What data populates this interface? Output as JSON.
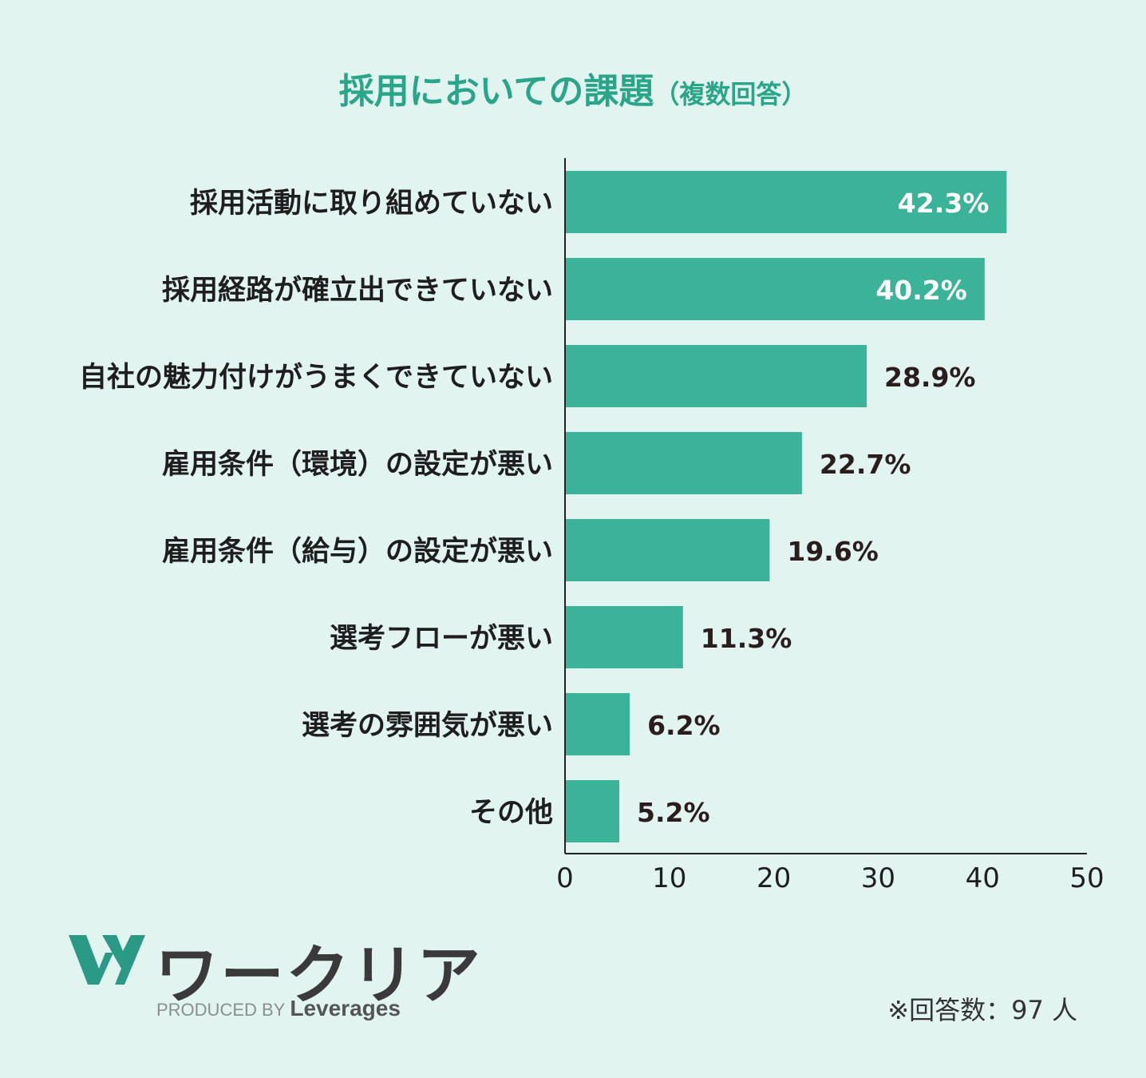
{
  "title": {
    "main": "採用においての課題",
    "sub": "（複数回答）"
  },
  "colors": {
    "bar": "#3ab398",
    "title": "#2aa58a",
    "label_inside": "#ffffff",
    "label_outside": "#2b1d1d",
    "background": "#e2f4ef"
  },
  "chart_data": {
    "type": "bar",
    "orientation": "horizontal",
    "categories": [
      "採用活動に取り組めていない",
      "採用経路が確立出できていない",
      "自社の魅力付けがうまくできていない",
      "雇用条件（環境）の設定が悪い",
      "雇用条件（給与）の設定が悪い",
      "選考フローが悪い",
      "選考の雰囲気が悪い",
      "その他"
    ],
    "values": [
      42.3,
      40.2,
      28.9,
      22.7,
      19.6,
      11.3,
      6.2,
      5.2
    ],
    "value_labels": [
      "42.3%",
      "40.2%",
      "28.9%",
      "22.7%",
      "19.6%",
      "11.3%",
      "6.2%",
      "5.2%"
    ],
    "xlim": [
      0,
      50
    ],
    "xticks": [
      "0",
      "10",
      "20",
      "30",
      "40",
      "50"
    ],
    "grid": false
  },
  "logo": {
    "name": "ワークリア",
    "produced_by": "PRODUCED BY",
    "brand": "Leverages",
    "icon": "w-logo-icon"
  },
  "note": "※回答数：97 人"
}
